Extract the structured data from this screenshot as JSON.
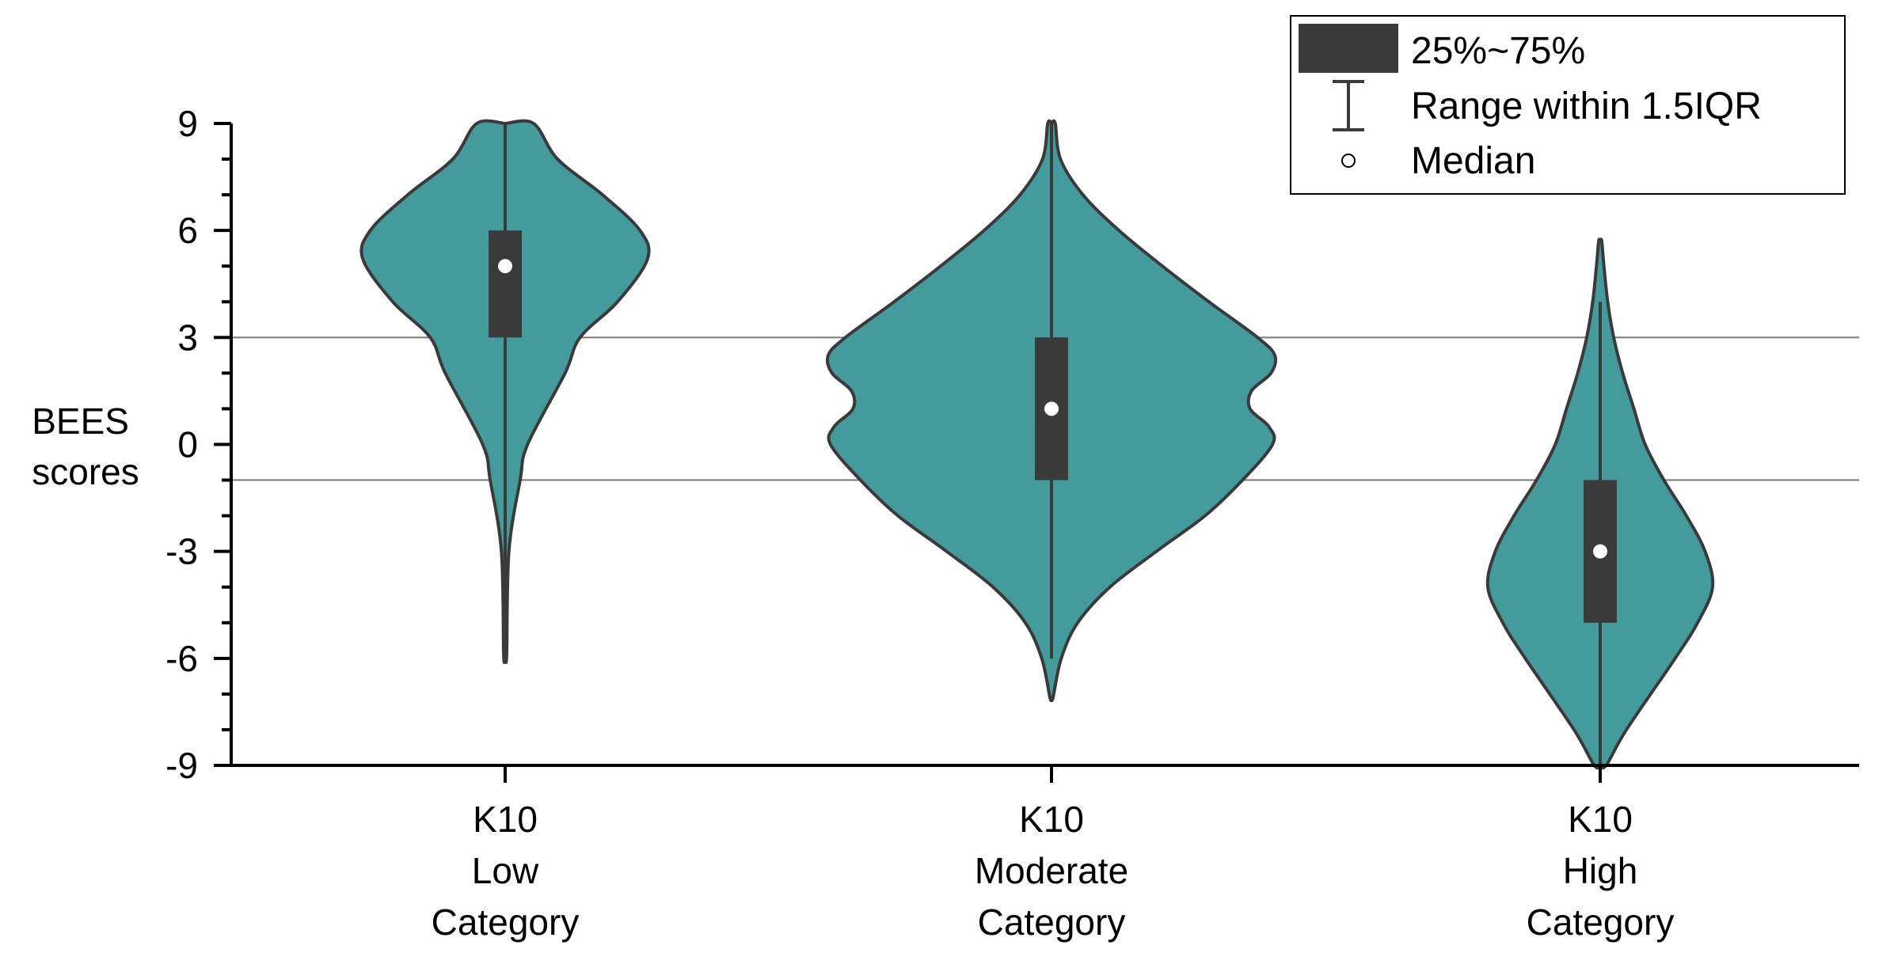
{
  "chart_data": {
    "type": "violin",
    "title": "",
    "xlabel": "",
    "ylabel_lines": [
      "BEES",
      "scores"
    ],
    "ylim": [
      -9,
      9
    ],
    "yticks": [
      -9,
      -6,
      -3,
      0,
      3,
      6,
      9
    ],
    "ytick_labels": [
      "-9",
      "-6",
      "-3",
      "0",
      "3",
      "6",
      "9"
    ],
    "reference_lines": [
      3,
      -1
    ],
    "grid": false,
    "fill_color": "#439b9b",
    "box_color": "#3a3a3a",
    "median_color": "#ffffff",
    "categories": [
      {
        "lines": [
          "K10",
          "Low",
          "Category"
        ]
      },
      {
        "lines": [
          "K10",
          "Moderate",
          "Category"
        ]
      },
      {
        "lines": [
          "K10",
          "High",
          "Category"
        ]
      }
    ],
    "series": [
      {
        "category_index": 0,
        "q1": 3,
        "median": 5,
        "q3": 6,
        "whisker_low": -5.8,
        "whisker_high": 9,
        "violin_min": -5.9,
        "violin_max": 9,
        "density": [
          [
            -5.9,
            0.02
          ],
          [
            -3,
            0.05
          ],
          [
            -1,
            0.2
          ],
          [
            0,
            0.3
          ],
          [
            2,
            0.8
          ],
          [
            3,
            1.0
          ],
          [
            4,
            1.5
          ],
          [
            5.2,
            1.9
          ],
          [
            6,
            1.8
          ],
          [
            7,
            1.3
          ],
          [
            8,
            0.7
          ],
          [
            9,
            0.38
          ]
        ]
      },
      {
        "category_index": 1,
        "q1": -1,
        "median": 1,
        "q3": 3,
        "whisker_low": -6,
        "whisker_high": 9,
        "violin_min": -7.1,
        "violin_max": 9,
        "density": [
          [
            -7.1,
            0.02
          ],
          [
            -6,
            0.13
          ],
          [
            -5,
            0.35
          ],
          [
            -4,
            0.78
          ],
          [
            -3,
            1.4
          ],
          [
            -2,
            2.05
          ],
          [
            -1,
            2.55
          ],
          [
            0,
            2.95
          ],
          [
            0.5,
            2.9
          ],
          [
            1,
            2.65
          ],
          [
            1.5,
            2.67
          ],
          [
            2,
            2.93
          ],
          [
            2.5,
            2.98
          ],
          [
            3,
            2.75
          ],
          [
            4,
            2.1
          ],
          [
            5,
            1.48
          ],
          [
            6,
            0.9
          ],
          [
            7,
            0.42
          ],
          [
            8,
            0.12
          ],
          [
            9,
            0.05
          ]
        ]
      },
      {
        "category_index": 2,
        "q1": -5,
        "median": -3,
        "q3": -1,
        "whisker_low": -9,
        "whisker_high": 4,
        "violin_min": -9,
        "violin_max": 5.7,
        "density": [
          [
            -9,
            0.08
          ],
          [
            -8,
            0.35
          ],
          [
            -6,
            1.0
          ],
          [
            -5,
            1.3
          ],
          [
            -4,
            1.5
          ],
          [
            -3,
            1.4
          ],
          [
            -2,
            1.15
          ],
          [
            -1,
            0.85
          ],
          [
            0,
            0.6
          ],
          [
            1,
            0.45
          ],
          [
            2,
            0.3
          ],
          [
            3,
            0.18
          ],
          [
            4,
            0.1
          ],
          [
            5,
            0.05
          ],
          [
            5.7,
            0.02
          ]
        ]
      }
    ],
    "legend": {
      "position": "top-right",
      "items": [
        {
          "label": "25%~75%"
        },
        {
          "label": "Range within 1.5IQR"
        },
        {
          "label": "Median"
        }
      ]
    }
  }
}
